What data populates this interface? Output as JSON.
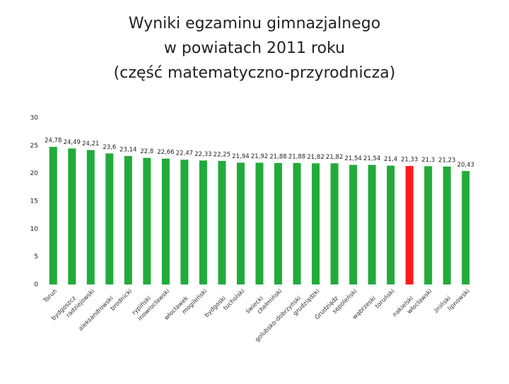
{
  "chart_data": {
    "type": "bar",
    "title": [
      "Wyniki egzaminu gimnazjalnego",
      "w powiatach  2011 roku",
      "(część matematyczno-przyrodnicza)"
    ],
    "categories": [
      "Toruń",
      "bydgoszcz",
      "radziejowski",
      "aleksandrowski",
      "brodnicki",
      "rypiński",
      "inowrocławski",
      "włocławek",
      "mogileński",
      "bydgoski",
      "tucholski",
      "świecki",
      "chełmiński",
      "golubsko-dobrzyński",
      "grudziądzki",
      "Grudziądz",
      "sępoleński",
      "wąbrzeski",
      "toruński",
      "nakielski",
      "włocławski",
      "żniński",
      "lipnowski"
    ],
    "values": [
      24.78,
      24.49,
      24.21,
      23.6,
      23.14,
      22.8,
      22.66,
      22.47,
      22.33,
      22.25,
      21.94,
      21.92,
      21.88,
      21.88,
      21.82,
      21.82,
      21.54,
      21.54,
      21.4,
      21.33,
      21.3,
      21.23,
      20.43
    ],
    "value_labels": [
      "24,78",
      "24,49",
      "24,21",
      "23,6",
      "23,14",
      "22,8",
      "22,66",
      "22,47",
      "22,33",
      "22,25",
      "21,94",
      "21,92",
      "21,88",
      "21,88",
      "21,82",
      "21,82",
      "21,54",
      "21,54",
      "21,4",
      "21,33",
      "21,3",
      "21,23",
      "20,43"
    ],
    "colors": [
      "#22ab3a",
      "#22ab3a",
      "#22ab3a",
      "#22ab3a",
      "#22ab3a",
      "#22ab3a",
      "#22ab3a",
      "#22ab3a",
      "#22ab3a",
      "#22ab3a",
      "#22ab3a",
      "#22ab3a",
      "#22ab3a",
      "#22ab3a",
      "#22ab3a",
      "#22ab3a",
      "#22ab3a",
      "#22ab3a",
      "#22ab3a",
      "#ff1a1a",
      "#22ab3a",
      "#22ab3a",
      "#22ab3a"
    ],
    "ylim": [
      0,
      30
    ],
    "yticks": [
      0,
      5,
      10,
      15,
      20,
      25,
      30
    ],
    "grid": false
  }
}
